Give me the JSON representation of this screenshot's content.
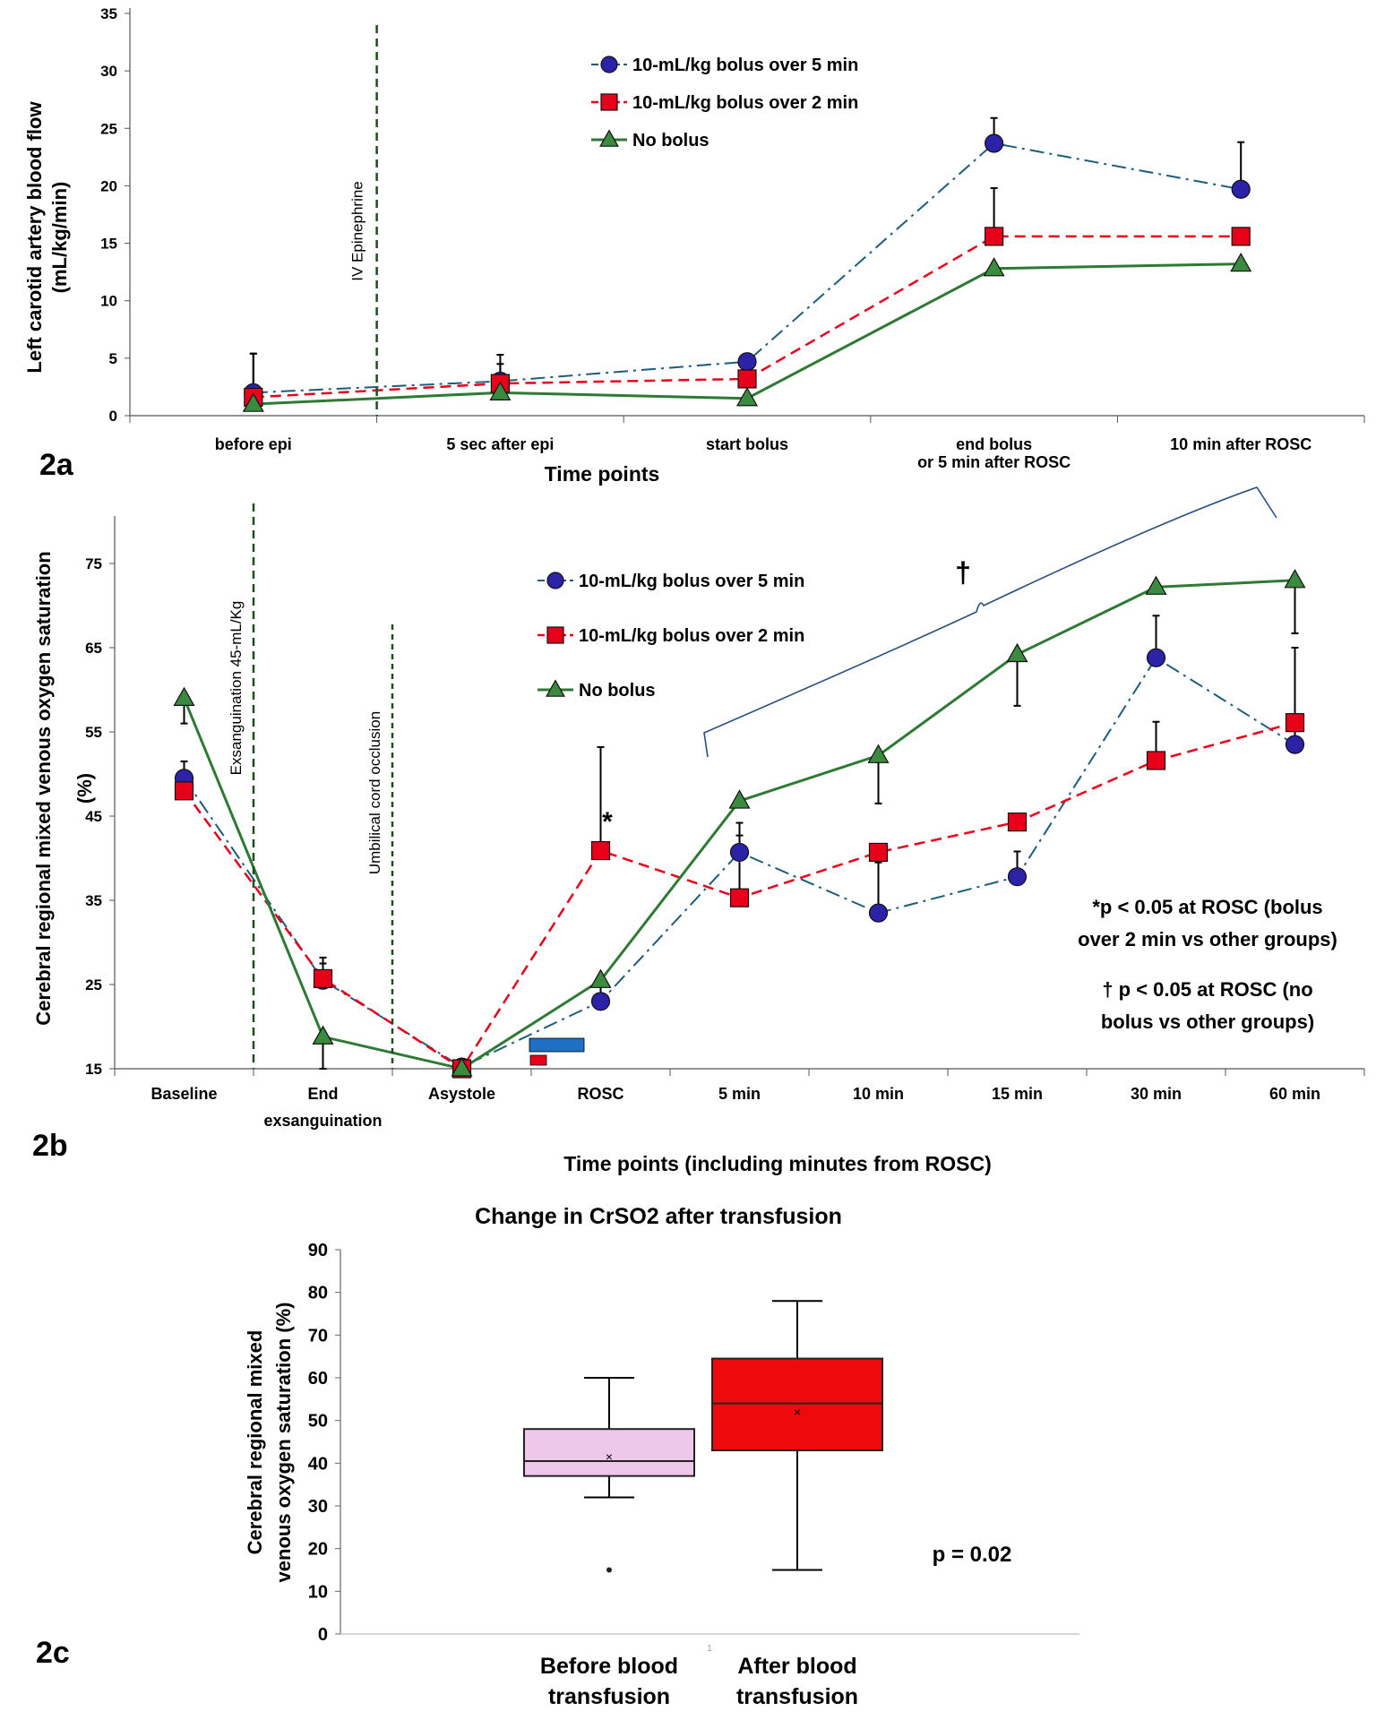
{
  "colors": {
    "blue_series": "#2b22a8",
    "blue_line": "#1d5c7a",
    "red_series": "#e8001a",
    "green_series": "#3a8a3f",
    "green_line": "#2e7a34",
    "epi_line": "#1f4d1f",
    "brace": "#2a4f7c",
    "box_before": "#efc7ea",
    "box_after": "#ee0a0a"
  },
  "chart_data": [
    {
      "panel": "2a",
      "type": "line",
      "xlabel": "Time points",
      "ylabel_lines": [
        "Left carotid artery blood flow",
        "(mL/kg/min)"
      ],
      "ylim": [
        0,
        35
      ],
      "yticks": [
        0,
        5,
        10,
        15,
        20,
        25,
        30,
        35
      ],
      "categories": [
        [
          "before epi"
        ],
        [
          "5 sec after epi"
        ],
        [
          "start bolus"
        ],
        [
          "end bolus",
          "or 5 min after ROSC"
        ],
        [
          "10 min after ROSC"
        ]
      ],
      "series": [
        {
          "name": "10-mL/kg bolus over 5 min",
          "marker": "circle",
          "values": [
            2.0,
            3.0,
            4.7,
            23.7,
            19.7
          ],
          "err": [
            3.4,
            1.5,
            0,
            2.2,
            4.1
          ]
        },
        {
          "name": "10-mL/kg bolus over 2 min",
          "marker": "square",
          "values": [
            1.6,
            2.8,
            3.2,
            15.6,
            15.6
          ],
          "err": [
            3.8,
            2.5,
            0,
            4.2,
            0
          ]
        },
        {
          "name": "No bolus",
          "marker": "triangle",
          "values": [
            1.0,
            2.0,
            1.5,
            12.8,
            13.2
          ],
          "err": [
            0,
            0,
            0,
            0,
            0
          ]
        }
      ],
      "annotations": {
        "vline": "IV Epinephrine"
      },
      "legend_position": "top-center",
      "grid": false
    },
    {
      "panel": "2b",
      "type": "line",
      "xlabel": "Time points (including minutes from  ROSC)",
      "ylabel_lines": [
        "Cerebral regional mixed venous oxygen saturation",
        "(%)"
      ],
      "ylim": [
        15,
        80
      ],
      "yticks": [
        15,
        25,
        35,
        45,
        55,
        65,
        75
      ],
      "categories": [
        [
          "Baseline"
        ],
        [
          "End",
          "exsanguination"
        ],
        [
          "Asystole"
        ],
        [
          "ROSC"
        ],
        [
          "5 min"
        ],
        [
          "10 min"
        ],
        [
          "15 min"
        ],
        [
          "30 min"
        ],
        [
          "60 min"
        ]
      ],
      "series": [
        {
          "name": "10-mL/kg bolus over 5 min",
          "marker": "circle",
          "values": [
            49.5,
            25.5,
            15.2,
            23.0,
            40.7,
            33.5,
            37.8,
            63.8,
            53.5
          ],
          "err": [
            2.0,
            2.0,
            0,
            3.0,
            3.5,
            6.0,
            3.0,
            5.0,
            2.8
          ]
        },
        {
          "name": "10-mL/kg bolus over 2 min",
          "marker": "square",
          "values": [
            48.0,
            25.7,
            15.0,
            40.9,
            35.3,
            40.7,
            44.3,
            51.6,
            56.1
          ],
          "err": [
            2.3,
            2.5,
            0,
            12.3,
            7.4,
            0,
            0,
            4.6,
            8.9
          ]
        },
        {
          "name": "No bolus",
          "marker": "triangle",
          "values": [
            59.0,
            18.8,
            15.0,
            25.5,
            46.8,
            52.2,
            64.2,
            72.2,
            73.0
          ],
          "err": [
            3.0,
            3.8,
            0,
            0,
            0,
            5.7,
            6.1,
            0,
            6.3
          ]
        }
      ],
      "annotations": {
        "vline_1": "Exsanguination 45-mL/Kg",
        "vline_2": "Umbilical cord occlusion",
        "asterisk": "*",
        "dagger": "†",
        "note_1": [
          "*p < 0.05 at ROSC (bolus",
          "over 2 min vs other groups)"
        ],
        "note_2": [
          "† p < 0.05 at ROSC (no",
          "bolus vs other groups)"
        ]
      },
      "legend_position": "top-center",
      "grid": false
    },
    {
      "panel": "2c",
      "type": "box",
      "title": "Change in CrSO2 after transfusion",
      "ylabel_lines": [
        "Cerebral regional mixed",
        "venous oxygen saturation (%)"
      ],
      "ylim": [
        0,
        90
      ],
      "yticks": [
        0,
        10,
        20,
        30,
        40,
        50,
        60,
        70,
        80,
        90
      ],
      "categories": [
        [
          "Before blood",
          "transfusion"
        ],
        [
          "After blood",
          "transfusion"
        ]
      ],
      "boxes": [
        {
          "min": 32,
          "q1": 37,
          "median": 40.5,
          "q3": 48,
          "max": 60,
          "mean": 41.5,
          "outliers": [
            15
          ]
        },
        {
          "min": 15,
          "q1": 43,
          "median": 54,
          "q3": 64.5,
          "max": 78,
          "mean": 52,
          "outliers": []
        }
      ],
      "annotation": "p = 0.02",
      "grid": false
    }
  ],
  "panel_labels": [
    "2a",
    "2b",
    "2c"
  ],
  "stray_mark": "1"
}
